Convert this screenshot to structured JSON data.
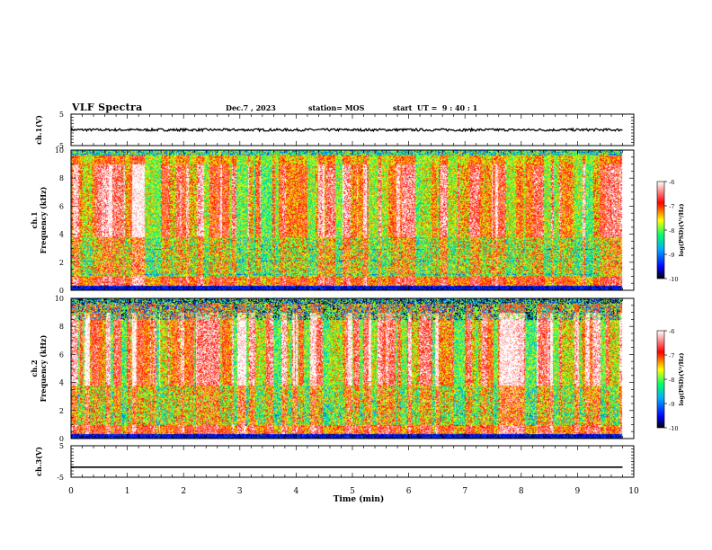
{
  "header": {
    "title": "VLF Spectra",
    "date": "Dec.7 , 2023",
    "station": "station= MOS",
    "start": "start  UT =  9 : 40 : 1"
  },
  "chart_data": [
    {
      "type": "line",
      "panel": "ch1-waveform",
      "ylabel": "ch.1(V)",
      "ylim": [
        -5,
        5
      ],
      "y_ticks": [
        "5",
        "-5"
      ],
      "x_unit": "min",
      "xlim": [
        0,
        10
      ],
      "series": [
        {
          "x": [
            0,
            9.8
          ],
          "y": [
            0,
            0
          ],
          "noise_amplitude": 0.4
        }
      ]
    },
    {
      "type": "heatmap",
      "panel": "ch1-spectrogram",
      "ylabel": "ch.1\nFrequency (kHz)",
      "ylim": [
        0,
        10
      ],
      "y_ticks": [
        "0",
        "2",
        "4",
        "6",
        "8",
        "10"
      ],
      "xlim": [
        0,
        10
      ],
      "data_end_min": 9.8,
      "colorbar": {
        "label": "log(PSD)(V²/Hz)",
        "range": [
          -10,
          -6
        ],
        "ticks": [
          "-6",
          "-7",
          "-8",
          "-9",
          "-10"
        ],
        "colors": [
          "#000000",
          "#0000ff",
          "#00aaff",
          "#00ff66",
          "#ffff00",
          "#ff0000",
          "#ffffff"
        ]
      }
    },
    {
      "type": "heatmap",
      "panel": "ch2-spectrogram",
      "ylabel": "ch.2\nFrequency (kHz)",
      "ylim": [
        0,
        10
      ],
      "y_ticks": [
        "0",
        "2",
        "4",
        "6",
        "8",
        "10"
      ],
      "xlim": [
        0,
        10
      ],
      "data_end_min": 9.8,
      "colorbar": {
        "label": "log(PSD)(V²/Hz)",
        "range": [
          -10,
          -6
        ],
        "ticks": [
          "-6",
          "-7",
          "-8",
          "-9",
          "-10"
        ],
        "colors": [
          "#000000",
          "#0000ff",
          "#00aaff",
          "#00ff66",
          "#ffff00",
          "#ff0000",
          "#ffffff"
        ]
      }
    },
    {
      "type": "line",
      "panel": "ch3-waveform",
      "ylabel": "ch.3(V)",
      "ylim": [
        -5,
        5
      ],
      "y_ticks": [
        "5",
        "-5"
      ],
      "xlim": [
        0,
        10
      ],
      "series": [
        {
          "x": [
            0,
            9.8
          ],
          "y": [
            -1.8,
            -1.8
          ],
          "noise_amplitude": 0
        }
      ]
    }
  ],
  "x_axis": {
    "label": "Time (min)",
    "ticks": [
      "0",
      "1",
      "2",
      "3",
      "4",
      "5",
      "6",
      "7",
      "8",
      "9",
      "10"
    ]
  }
}
